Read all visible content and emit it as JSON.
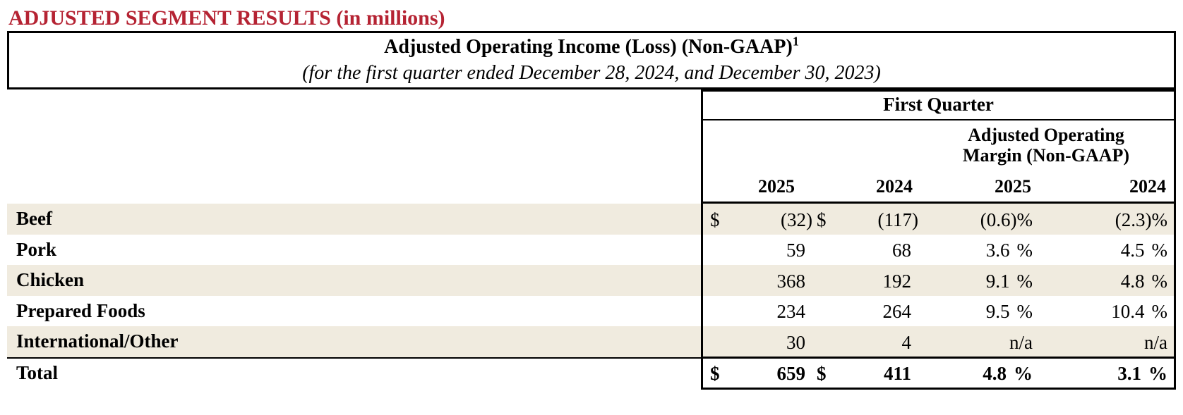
{
  "page": {
    "heading": "ADJUSTED SEGMENT RESULTS (in millions)"
  },
  "table": {
    "title": "Adjusted Operating Income (Loss) (Non-GAAP)",
    "title_footnote": "1",
    "subtitle": "(for the first quarter ended December 28, 2024, and December 30, 2023)",
    "quarter_header": "First Quarter",
    "margin_header_line1": "Adjusted Operating",
    "margin_header_line2": "Margin (Non-GAAP)",
    "year_cols": [
      "2025",
      "2024",
      "2025",
      "2024"
    ],
    "rows": [
      {
        "label": "Beef",
        "cur1": "$",
        "v1": "(32)",
        "cur2": "$",
        "v2": "(117)",
        "m1": "(0.6)",
        "u1": "%",
        "m2": "(2.3)",
        "u2": "%"
      },
      {
        "label": "Pork",
        "cur1": "",
        "v1": "59",
        "cur2": "",
        "v2": "68",
        "m1": "3.6",
        "u1": "%",
        "m2": "4.5",
        "u2": "%"
      },
      {
        "label": "Chicken",
        "cur1": "",
        "v1": "368",
        "cur2": "",
        "v2": "192",
        "m1": "9.1",
        "u1": "%",
        "m2": "4.8",
        "u2": "%"
      },
      {
        "label": "Prepared Foods",
        "cur1": "",
        "v1": "234",
        "cur2": "",
        "v2": "264",
        "m1": "9.5",
        "u1": "%",
        "m2": "10.4",
        "u2": "%"
      },
      {
        "label": "International/Other",
        "cur1": "",
        "v1": "30",
        "cur2": "",
        "v2": "4",
        "m1": "n/a",
        "m2": "n/a"
      },
      {
        "label": "Total",
        "cur1": "$",
        "v1": "659",
        "cur2": "$",
        "v2": "411",
        "m1": "4.8",
        "u1": "%",
        "m2": "3.1",
        "u2": "%"
      }
    ],
    "colors": {
      "heading_red": "#b52333",
      "row_stripe_beige": "#f0ebdf",
      "border_black": "#000000"
    }
  }
}
